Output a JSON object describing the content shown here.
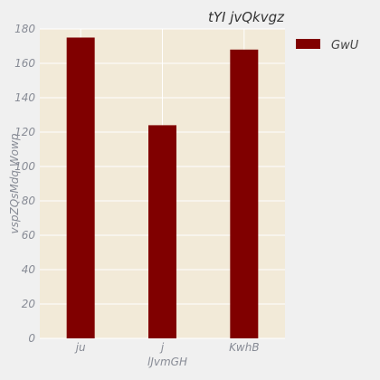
{
  "chart_data": {
    "type": "bar",
    "title": "tYI  jvQkvgz",
    "xlabel": "lJvmGH",
    "ylabel": "vspZQsMdq Wowp",
    "categories": [
      "ju",
      "j",
      "KwhB"
    ],
    "series": [
      {
        "name": "GwU",
        "values": [
          175,
          124,
          168
        ]
      }
    ],
    "ylim": [
      0,
      180
    ],
    "yticks": [
      0,
      20,
      40,
      60,
      80,
      100,
      120,
      140,
      160,
      180
    ],
    "grid": true,
    "legend_position": "right",
    "colors": {
      "plot_bg": "#f2ead8",
      "page_bg": "#f0f0f0",
      "bar": "#800000",
      "grid": "#ffffff",
      "text": "#888c96"
    }
  }
}
